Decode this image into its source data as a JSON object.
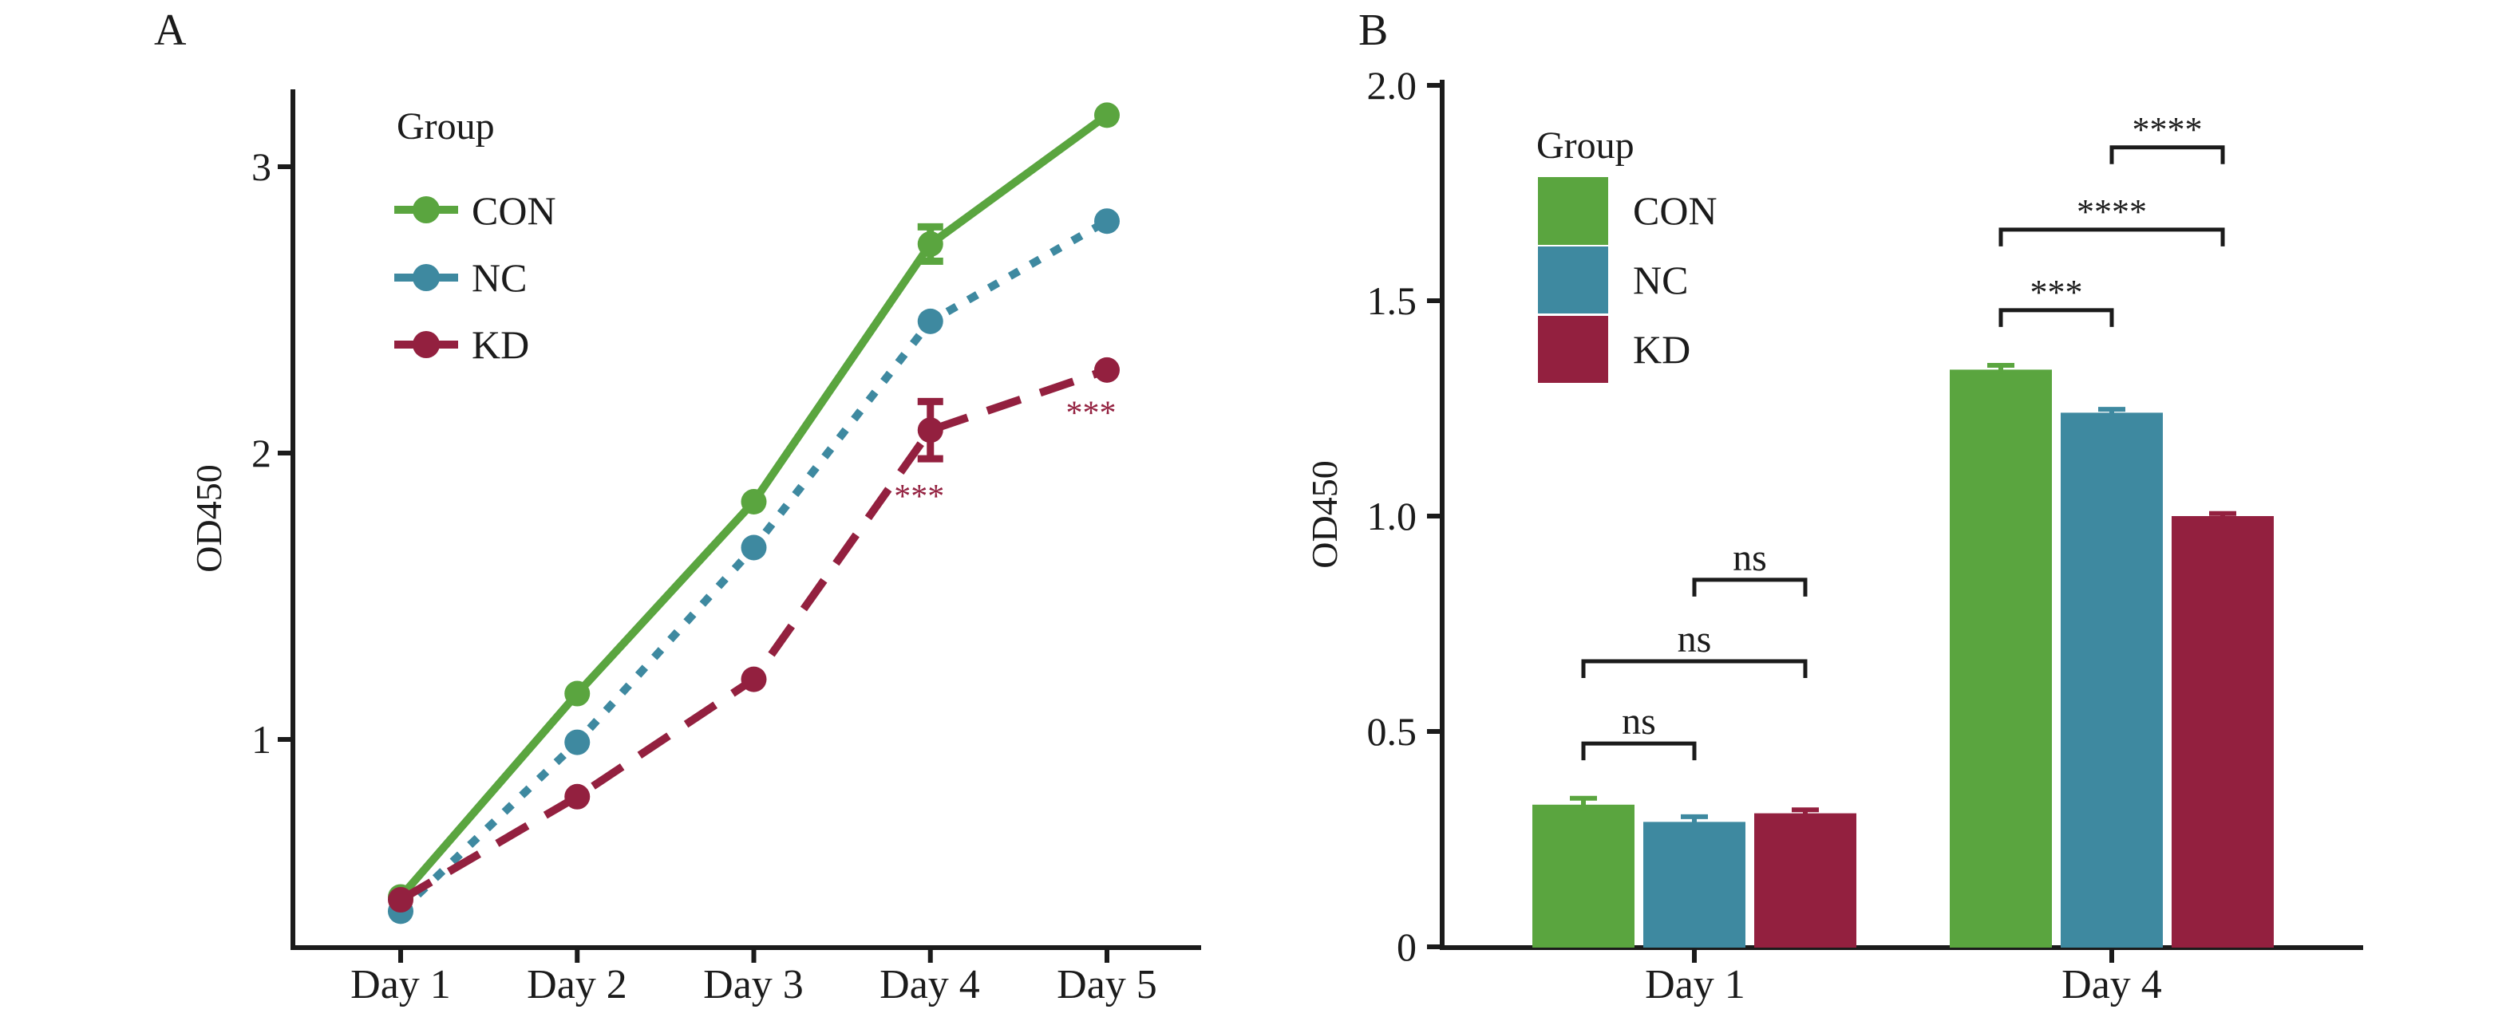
{
  "colors": {
    "con": "#5aa53f",
    "nc": "#3e89a0",
    "kd": "#93203f",
    "axis": "#1b1b1b",
    "text": "#1b1b1b"
  },
  "chart_data": [
    {
      "panel": "A",
      "type": "line",
      "title": "",
      "x": [
        "Day 1",
        "Day 2",
        "Day 3",
        "Day 4",
        "Day 5"
      ],
      "xlabel": "",
      "ylabel": "OD450",
      "y_ticks": [
        1,
        2,
        3
      ],
      "ylim": [
        0.27,
        3.35
      ],
      "grid": false,
      "legend": {
        "title": "Group",
        "position": "top-left-inside"
      },
      "series": [
        {
          "name": "CON",
          "color_key": "con",
          "line": "solid",
          "values": [
            0.45,
            1.16,
            1.83,
            2.73,
            3.18
          ],
          "errors": [
            0,
            0,
            0,
            0.06,
            0
          ]
        },
        {
          "name": "NC",
          "color_key": "nc",
          "line": "dotted",
          "values": [
            0.4,
            0.99,
            1.67,
            2.46,
            2.81
          ],
          "errors": [
            0,
            0,
            0,
            0,
            0
          ]
        },
        {
          "name": "KD",
          "color_key": "kd",
          "line": "dashed",
          "values": [
            0.44,
            0.8,
            1.21,
            2.08,
            2.29
          ],
          "errors": [
            0,
            0,
            0,
            0.1,
            0
          ]
        }
      ],
      "annotations": [
        {
          "label": "***",
          "x_index": 3,
          "dx": -14,
          "y": 1.85,
          "color_key": "kd"
        },
        {
          "label": "***",
          "x_index": 4,
          "dx": -20,
          "y": 2.14,
          "color_key": "kd"
        }
      ]
    },
    {
      "panel": "B",
      "type": "bar",
      "title": "",
      "categories": [
        "Day 1",
        "Day 4"
      ],
      "xlabel": "",
      "ylabel": "OD450",
      "y_ticks": [
        0,
        0.5,
        1,
        1.5,
        2
      ],
      "y_tick_labels": [
        "0",
        "0.5",
        "1.0",
        "1.5",
        "2.0"
      ],
      "ylim": [
        0,
        2.0
      ],
      "grid": false,
      "legend": {
        "title": "Group",
        "position": "top-left-inside"
      },
      "series": [
        {
          "name": "CON",
          "color_key": "con",
          "values": [
            0.33,
            1.34
          ],
          "errors": [
            0.015,
            0.01
          ]
        },
        {
          "name": "NC",
          "color_key": "nc",
          "values": [
            0.29,
            1.24
          ],
          "errors": [
            0.012,
            0.008
          ]
        },
        {
          "name": "KD",
          "color_key": "kd",
          "values": [
            0.31,
            1.0
          ],
          "errors": [
            0.008,
            0.006
          ]
        }
      ],
      "significance": [
        {
          "category_index": 0,
          "from": 0,
          "to": 1,
          "label": "ns",
          "y": 0.472
        },
        {
          "category_index": 0,
          "from": 0,
          "to": 2,
          "label": "ns",
          "y": 0.663
        },
        {
          "category_index": 0,
          "from": 1,
          "to": 2,
          "label": "ns",
          "y": 0.852
        },
        {
          "category_index": 1,
          "from": 0,
          "to": 1,
          "label": "***",
          "y": 1.478
        },
        {
          "category_index": 1,
          "from": 0,
          "to": 2,
          "label": "****",
          "y": 1.665
        },
        {
          "category_index": 1,
          "from": 1,
          "to": 2,
          "label": "****",
          "y": 1.856
        }
      ]
    }
  ]
}
